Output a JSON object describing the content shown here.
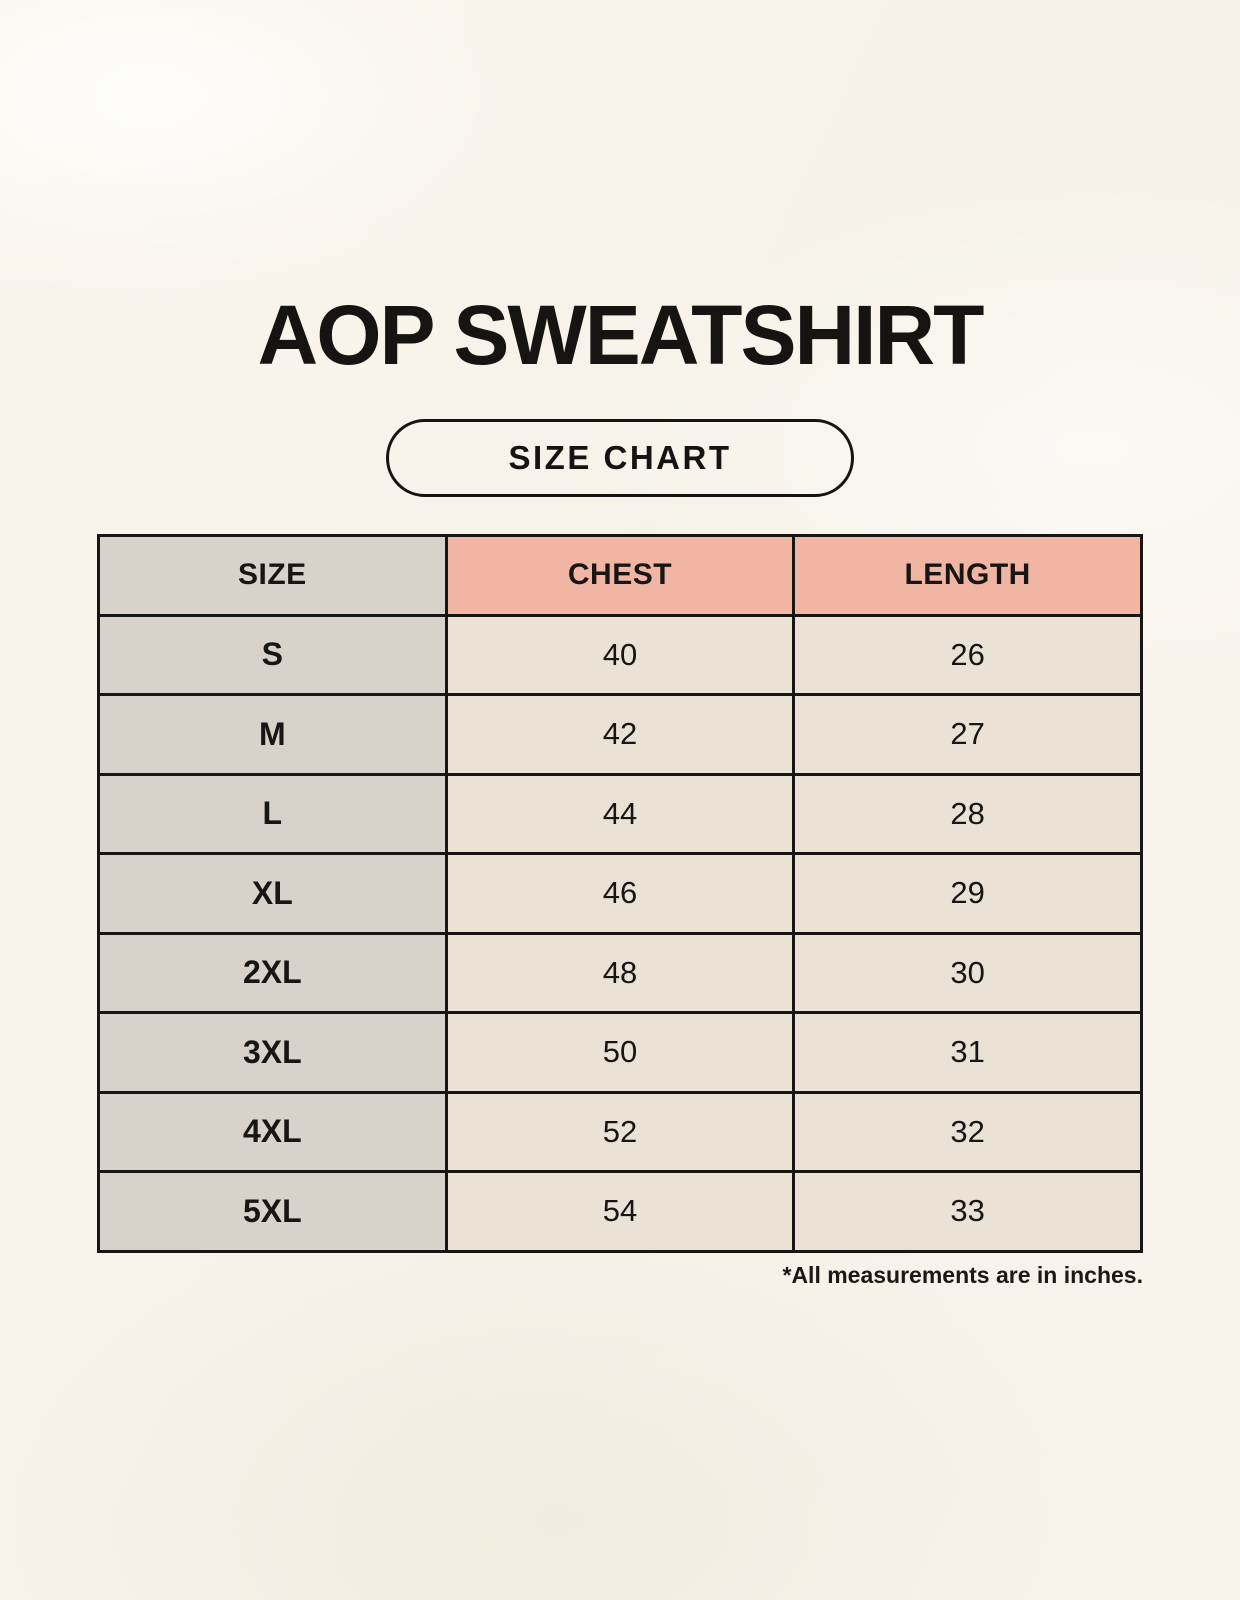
{
  "page": {
    "title": "AOP SWEATSHIRT",
    "button_label": "SIZE CHART",
    "footnote": "*All measurements are in inches."
  },
  "chart_data": {
    "type": "table",
    "title": "AOP SWEATSHIRT",
    "subtitle": "SIZE CHART",
    "units": "inches",
    "columns": [
      "SIZE",
      "CHEST",
      "LENGTH"
    ],
    "rows": [
      {
        "size": "S",
        "chest": 40,
        "length": 26
      },
      {
        "size": "M",
        "chest": 42,
        "length": 27
      },
      {
        "size": "L",
        "chest": 44,
        "length": 28
      },
      {
        "size": "XL",
        "chest": 46,
        "length": 29
      },
      {
        "size": "2XL",
        "chest": 48,
        "length": 30
      },
      {
        "size": "3XL",
        "chest": 50,
        "length": 31
      },
      {
        "size": "4XL",
        "chest": 52,
        "length": 32
      },
      {
        "size": "5XL",
        "chest": 54,
        "length": 33
      }
    ]
  },
  "colors": {
    "background": "#f8f4eb",
    "size_column_bg": "#d9d2cb",
    "header_accent_bg": "#f0b5a3",
    "value_cell_bg": "#e9e2d5",
    "border": "#181614",
    "text": "#161412"
  }
}
